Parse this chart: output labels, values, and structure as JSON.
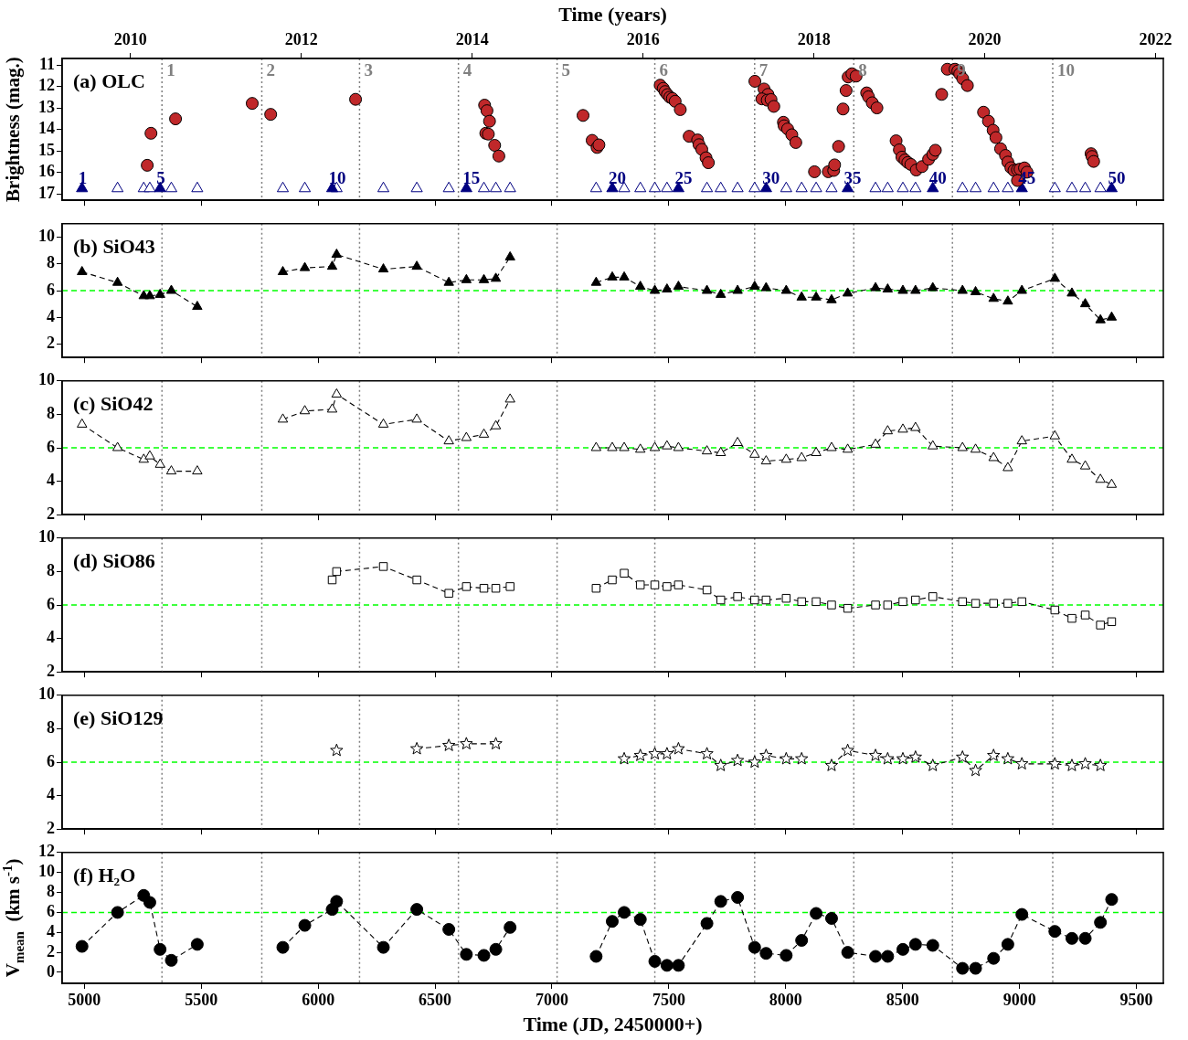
{
  "chart_data": [
    {
      "type": "scatter",
      "annotations": [
        "(a) OLC",
        {
          "text": "1",
          "x": 4990,
          "y": 16.3
        },
        {
          "text": "5",
          "x": 5324,
          "y": 16.3
        },
        {
          "text": "10",
          "x": 6060,
          "y": 16.3
        },
        {
          "text": "15",
          "x": 6634,
          "y": 16.3
        },
        {
          "text": "20",
          "x": 7258,
          "y": 16.3
        },
        {
          "text": "25",
          "x": 7541,
          "y": 16.3
        },
        {
          "text": "30",
          "x": 7916,
          "y": 16.3
        },
        {
          "text": "35",
          "x": 8265,
          "y": 16.3
        },
        {
          "text": "40",
          "x": 8629,
          "y": 16.3
        },
        {
          "text": "45",
          "x": 9010,
          "y": 16.3
        },
        {
          "text": "50",
          "x": 9394,
          "y": 16.3
        },
        {
          "text": "1",
          "x": 5332,
          "y": 11.3
        },
        {
          "text": "2",
          "x": 5759,
          "y": 11.3
        },
        {
          "text": "3",
          "x": 6177,
          "y": 11.3
        },
        {
          "text": "4",
          "x": 6600,
          "y": 11.3
        },
        {
          "text": "5",
          "x": 7022,
          "y": 11.3
        },
        {
          "text": "6",
          "x": 7440,
          "y": 11.3
        },
        {
          "text": "7",
          "x": 7867,
          "y": 11.3
        },
        {
          "text": "8",
          "x": 8291,
          "y": 11.3
        },
        {
          "text": "9",
          "x": 8713,
          "y": 11.3
        },
        {
          "text": "10",
          "x": 9142,
          "y": 11.3
        }
      ],
      "x2label": "Time (years)",
      "ylabel": "Brightness (mag.)",
      "xlim": [
        4905,
        9615
      ],
      "xticks": [
        5000,
        5500,
        6000,
        6500,
        7000,
        7500,
        8000,
        8500,
        9000,
        9500
      ],
      "x2lim": [
        2009.2,
        2022.09
      ],
      "x2ticks": [
        2010,
        2012,
        2014,
        2016,
        2018,
        2020,
        2022
      ],
      "ylim": [
        17.3,
        10.7
      ],
      "yticks": [
        11,
        12,
        13,
        14,
        15,
        16,
        17
      ],
      "tick_labels": "y",
      "ref_lines": [
        {
          "axis": "x",
          "value": 5332,
          "color": "#808080",
          "line_style": "dotted"
        },
        {
          "axis": "x",
          "value": 5759,
          "color": "#808080",
          "line_style": "dotted"
        },
        {
          "axis": "x",
          "value": 6177,
          "color": "#808080",
          "line_style": "dotted"
        },
        {
          "axis": "x",
          "value": 6600,
          "color": "#808080",
          "line_style": "dotted"
        },
        {
          "axis": "x",
          "value": 7022,
          "color": "#808080",
          "line_style": "dotted"
        },
        {
          "axis": "x",
          "value": 7440,
          "color": "#808080",
          "line_style": "dotted"
        },
        {
          "axis": "x",
          "value": 7867,
          "color": "#808080",
          "line_style": "dotted"
        },
        {
          "axis": "x",
          "value": 8291,
          "color": "#808080",
          "line_style": "dotted"
        },
        {
          "axis": "x",
          "value": 8713,
          "color": "#808080",
          "line_style": "dotted"
        },
        {
          "axis": "x",
          "value": 9142,
          "color": "#808080",
          "line_style": "dotted"
        }
      ],
      "series": [
        {
          "marker": "circle",
          "color": "#c0282a",
          "x": [
            5269,
            5285,
            5390,
            5718,
            5797,
            6160,
            6712,
            6722,
            6733,
            6717,
            6728,
            6755,
            6773,
            7133,
            7172,
            7193,
            7201,
            7463,
            7476,
            7484,
            7494,
            7504,
            7515,
            7527,
            7549,
            7587,
            7623,
            7629,
            7641,
            7659,
            7669,
            7868,
            7907,
            7924,
            7898,
            7921,
            7937,
            7949,
            7990,
            7993,
            8008,
            8026,
            8043,
            8123,
            8182,
            8205,
            8209,
            8226,
            8245,
            8258,
            8267,
            8283,
            8301,
            8346,
            8354,
            8370,
            8390,
            8472,
            8486,
            8497,
            8510,
            8522,
            8535,
            8558,
            8583,
            8611,
            8629,
            8640,
            8667,
            8691,
            8724,
            8736,
            8744,
            8757,
            8777,
            8846,
            8867,
            8887,
            8899,
            8919,
            8940,
            8950,
            8963,
            8976,
            8991,
            9002,
            8991,
            9021,
            9032,
            9306,
            9310,
            9317
          ],
          "values": [
            15.67,
            14.18,
            13.51,
            12.79,
            13.3,
            12.6,
            12.87,
            13.13,
            13.62,
            14.18,
            14.22,
            14.74,
            15.24,
            13.35,
            14.51,
            14.84,
            14.72,
            11.94,
            12.09,
            12.24,
            12.38,
            12.5,
            12.56,
            12.69,
            13.08,
            14.32,
            14.49,
            14.71,
            14.93,
            15.32,
            15.55,
            11.76,
            12.12,
            12.37,
            12.58,
            12.64,
            12.61,
            12.93,
            13.67,
            13.83,
            13.98,
            14.25,
            14.61,
            15.97,
            15.97,
            15.91,
            15.65,
            14.79,
            13.05,
            12.19,
            11.56,
            11.41,
            11.52,
            12.3,
            12.48,
            12.76,
            13.0,
            14.53,
            14.95,
            15.29,
            15.42,
            15.54,
            15.63,
            15.89,
            15.73,
            15.39,
            15.16,
            14.97,
            12.37,
            11.2,
            11.2,
            11.28,
            11.42,
            11.64,
            11.96,
            13.2,
            13.62,
            14.04,
            14.38,
            14.9,
            15.21,
            15.52,
            15.78,
            15.91,
            15.88,
            15.85,
            16.38,
            15.79,
            15.99,
            15.13,
            15.26,
            15.49
          ]
        },
        {
          "marker": "triangle",
          "color": "#000080",
          "x": [
            4990,
            5324,
            6060,
            6634,
            7258,
            7541,
            7916,
            8265,
            8629,
            9010,
            9394
          ],
          "values": [
            16.75,
            16.75,
            16.75,
            16.75,
            16.75,
            16.75,
            16.75,
            16.75,
            16.75,
            16.75,
            16.75
          ]
        },
        {
          "marker": "triangle",
          "color": "#ffffff",
          "x": [
            5142,
            5254,
            5280,
            5372,
            5483,
            5849,
            5943,
            6079,
            6279,
            6422,
            6559,
            6709,
            6760,
            6821,
            7189,
            7309,
            7378,
            7440,
            7492,
            7663,
            7722,
            7794,
            7867,
            8002,
            8068,
            8130,
            8196,
            8384,
            8436,
            8501,
            8555,
            8756,
            8812,
            8889,
            8950,
            9151,
            9224,
            9281,
            9346
          ],
          "values": [
            16.75,
            16.75,
            16.75,
            16.75,
            16.75,
            16.75,
            16.75,
            16.75,
            16.75,
            16.75,
            16.75,
            16.75,
            16.75,
            16.75,
            16.75,
            16.75,
            16.75,
            16.75,
            16.75,
            16.75,
            16.75,
            16.75,
            16.75,
            16.75,
            16.75,
            16.75,
            16.75,
            16.75,
            16.75,
            16.75,
            16.75,
            16.75,
            16.75,
            16.75,
            16.75,
            16.75,
            16.75,
            16.75,
            16.75
          ]
        }
      ]
    },
    {
      "type": "line",
      "annotations": [
        "(b) SiO43"
      ],
      "xlim": [
        4905,
        9615
      ],
      "xticks": [
        5000,
        5500,
        6000,
        6500,
        7000,
        7500,
        8000,
        8500,
        9000,
        9500
      ],
      "ylim": [
        1,
        11
      ],
      "yticks": [
        2,
        4,
        6,
        8,
        10
      ],
      "tick_labels": "y",
      "ref_lines": [
        {
          "axis": "y",
          "value": 6,
          "color": "#00ff00",
          "line_style": "dashed"
        },
        {
          "axis": "x",
          "value": 5332,
          "color": "#808080",
          "line_style": "dotted"
        },
        {
          "axis": "x",
          "value": 5759,
          "color": "#808080",
          "line_style": "dotted"
        },
        {
          "axis": "x",
          "value": 6177,
          "color": "#808080",
          "line_style": "dotted"
        },
        {
          "axis": "x",
          "value": 6600,
          "color": "#808080",
          "line_style": "dotted"
        },
        {
          "axis": "x",
          "value": 7022,
          "color": "#808080",
          "line_style": "dotted"
        },
        {
          "axis": "x",
          "value": 7440,
          "color": "#808080",
          "line_style": "dotted"
        },
        {
          "axis": "x",
          "value": 7867,
          "color": "#808080",
          "line_style": "dotted"
        },
        {
          "axis": "x",
          "value": 8291,
          "color": "#808080",
          "line_style": "dotted"
        },
        {
          "axis": "x",
          "value": 8713,
          "color": "#808080",
          "line_style": "dotted"
        },
        {
          "axis": "x",
          "value": 9142,
          "color": "#808080",
          "line_style": "dotted"
        }
      ],
      "series": [
        {
          "marker": "triangle",
          "line_style": "dashed",
          "color": "#000000",
          "x": [
            4990,
            5142,
            5254,
            5280,
            5324,
            5372,
            5483
          ],
          "values": [
            7.4,
            6.6,
            5.6,
            5.6,
            5.7,
            6.0,
            4.8
          ]
        },
        {
          "marker": "triangle",
          "line_style": "dashed",
          "color": "#000000",
          "x": [
            5849,
            5943,
            6060,
            6079,
            6279,
            6422,
            6559,
            6634,
            6709,
            6760,
            6821
          ],
          "values": [
            7.4,
            7.7,
            7.8,
            8.7,
            7.6,
            7.8,
            6.6,
            6.8,
            6.8,
            6.9,
            8.5
          ]
        },
        {
          "marker": "triangle",
          "line_style": "dashed",
          "color": "#000000",
          "x": [
            7189,
            7258,
            7309,
            7378,
            7440,
            7492,
            7541,
            7663,
            7722,
            7794,
            7867,
            7916,
            8002,
            8068,
            8130,
            8196,
            8265,
            8384,
            8436,
            8501,
            8555,
            8629,
            8756,
            8812,
            8889,
            8950,
            9010,
            9151,
            9224,
            9281,
            9346,
            9394
          ],
          "values": [
            6.6,
            7.0,
            7.0,
            6.3,
            6.0,
            6.1,
            6.3,
            6.0,
            5.7,
            6.0,
            6.3,
            6.2,
            6.0,
            5.5,
            5.5,
            5.3,
            5.8,
            6.2,
            6.1,
            6.0,
            6.0,
            6.2,
            6.0,
            5.9,
            5.4,
            5.2,
            6.0,
            6.9,
            5.8,
            5.0,
            3.8,
            4.0
          ]
        }
      ]
    },
    {
      "type": "line",
      "annotations": [
        "(c) SiO42"
      ],
      "xlim": [
        4905,
        9615
      ],
      "xticks": [
        5000,
        5500,
        6000,
        6500,
        7000,
        7500,
        8000,
        8500,
        9000,
        9500
      ],
      "ylim": [
        2,
        10
      ],
      "yticks": [
        2,
        4,
        6,
        8,
        10
      ],
      "tick_labels": "y",
      "ref_lines": [
        {
          "axis": "y",
          "value": 6,
          "color": "#00ff00",
          "line_style": "dashed"
        },
        {
          "axis": "x",
          "value": 5332,
          "color": "#808080",
          "line_style": "dotted"
        },
        {
          "axis": "x",
          "value": 5759,
          "color": "#808080",
          "line_style": "dotted"
        },
        {
          "axis": "x",
          "value": 6177,
          "color": "#808080",
          "line_style": "dotted"
        },
        {
          "axis": "x",
          "value": 6600,
          "color": "#808080",
          "line_style": "dotted"
        },
        {
          "axis": "x",
          "value": 7022,
          "color": "#808080",
          "line_style": "dotted"
        },
        {
          "axis": "x",
          "value": 7440,
          "color": "#808080",
          "line_style": "dotted"
        },
        {
          "axis": "x",
          "value": 7867,
          "color": "#808080",
          "line_style": "dotted"
        },
        {
          "axis": "x",
          "value": 8291,
          "color": "#808080",
          "line_style": "dotted"
        },
        {
          "axis": "x",
          "value": 8713,
          "color": "#808080",
          "line_style": "dotted"
        },
        {
          "axis": "x",
          "value": 9142,
          "color": "#808080",
          "line_style": "dotted"
        }
      ],
      "series": [
        {
          "marker": "triangle",
          "line_style": "dashed",
          "color": "#ffffff",
          "x": [
            4990,
            5142,
            5254,
            5280,
            5324,
            5372,
            5483
          ],
          "values": [
            7.4,
            6.0,
            5.3,
            5.5,
            5.0,
            4.6,
            4.6
          ]
        },
        {
          "marker": "triangle",
          "line_style": "dashed",
          "color": "#ffffff",
          "x": [
            5849,
            5943,
            6060,
            6079,
            6279,
            6422,
            6559,
            6634,
            6709,
            6760,
            6821
          ],
          "values": [
            7.7,
            8.2,
            8.3,
            9.2,
            7.4,
            7.7,
            6.4,
            6.6,
            6.8,
            7.3,
            8.9
          ]
        },
        {
          "marker": "triangle",
          "line_style": "dashed",
          "color": "#ffffff",
          "x": [
            7189,
            7258,
            7309,
            7378,
            7440,
            7492,
            7541,
            7663,
            7722,
            7794,
            7867,
            7916,
            8002,
            8068,
            8130,
            8196,
            8265,
            8384,
            8436,
            8501,
            8555,
            8629,
            8756,
            8812,
            8889,
            8950,
            9010,
            9151,
            9224,
            9281,
            9346,
            9394
          ],
          "values": [
            6.0,
            6.0,
            6.0,
            5.9,
            6.0,
            6.1,
            6.0,
            5.8,
            5.7,
            6.3,
            5.6,
            5.2,
            5.3,
            5.4,
            5.7,
            6.0,
            5.9,
            6.2,
            7.0,
            7.1,
            7.2,
            6.1,
            6.0,
            5.9,
            5.4,
            4.8,
            6.4,
            6.7,
            5.3,
            4.9,
            4.1,
            3.8
          ]
        }
      ]
    },
    {
      "type": "line",
      "annotations": [
        "(d) SiO86"
      ],
      "xlim": [
        4905,
        9615
      ],
      "xticks": [
        5000,
        5500,
        6000,
        6500,
        7000,
        7500,
        8000,
        8500,
        9000,
        9500
      ],
      "ylim": [
        2,
        10
      ],
      "yticks": [
        2,
        4,
        6,
        8,
        10
      ],
      "tick_labels": "y",
      "ref_lines": [
        {
          "axis": "y",
          "value": 6,
          "color": "#00ff00",
          "line_style": "dashed"
        },
        {
          "axis": "x",
          "value": 5332,
          "color": "#808080",
          "line_style": "dotted"
        },
        {
          "axis": "x",
          "value": 5759,
          "color": "#808080",
          "line_style": "dotted"
        },
        {
          "axis": "x",
          "value": 6177,
          "color": "#808080",
          "line_style": "dotted"
        },
        {
          "axis": "x",
          "value": 6600,
          "color": "#808080",
          "line_style": "dotted"
        },
        {
          "axis": "x",
          "value": 7022,
          "color": "#808080",
          "line_style": "dotted"
        },
        {
          "axis": "x",
          "value": 7440,
          "color": "#808080",
          "line_style": "dotted"
        },
        {
          "axis": "x",
          "value": 7867,
          "color": "#808080",
          "line_style": "dotted"
        },
        {
          "axis": "x",
          "value": 8291,
          "color": "#808080",
          "line_style": "dotted"
        },
        {
          "axis": "x",
          "value": 8713,
          "color": "#808080",
          "line_style": "dotted"
        },
        {
          "axis": "x",
          "value": 9142,
          "color": "#808080",
          "line_style": "dotted"
        }
      ],
      "series": [
        {
          "marker": "square",
          "line_style": "dashed",
          "color": "#ffffff",
          "x": [
            6060,
            6079,
            6279,
            6422,
            6559,
            6634,
            6709,
            6760,
            6821
          ],
          "values": [
            7.5,
            8.0,
            8.3,
            7.5,
            6.7,
            7.1,
            7.0,
            7.0,
            7.1
          ]
        },
        {
          "marker": "square",
          "line_style": "dashed",
          "color": "#ffffff",
          "x": [
            7189,
            7258,
            7309,
            7378,
            7440,
            7492,
            7541,
            7663,
            7722,
            7794,
            7867,
            7916,
            8002,
            8068,
            8130,
            8196,
            8265,
            8384,
            8436,
            8501,
            8555,
            8629,
            8756,
            8812,
            8889,
            8950,
            9010,
            9151,
            9224,
            9281,
            9346,
            9394
          ],
          "values": [
            7.0,
            7.5,
            7.9,
            7.2,
            7.2,
            7.1,
            7.2,
            6.9,
            6.3,
            6.5,
            6.3,
            6.3,
            6.4,
            6.2,
            6.2,
            6.0,
            5.8,
            6.0,
            6.0,
            6.2,
            6.3,
            6.5,
            6.2,
            6.1,
            6.1,
            6.1,
            6.2,
            5.7,
            5.2,
            5.4,
            4.8,
            5.0
          ]
        }
      ]
    },
    {
      "type": "line",
      "annotations": [
        "(e) SiO129"
      ],
      "xlim": [
        4905,
        9615
      ],
      "xticks": [
        5000,
        5500,
        6000,
        6500,
        7000,
        7500,
        8000,
        8500,
        9000,
        9500
      ],
      "ylim": [
        2,
        10
      ],
      "yticks": [
        2,
        4,
        6,
        8,
        10
      ],
      "tick_labels": "y",
      "ref_lines": [
        {
          "axis": "y",
          "value": 6,
          "color": "#00ff00",
          "line_style": "dashed"
        },
        {
          "axis": "x",
          "value": 5332,
          "color": "#808080",
          "line_style": "dotted"
        },
        {
          "axis": "x",
          "value": 5759,
          "color": "#808080",
          "line_style": "dotted"
        },
        {
          "axis": "x",
          "value": 6177,
          "color": "#808080",
          "line_style": "dotted"
        },
        {
          "axis": "x",
          "value": 6600,
          "color": "#808080",
          "line_style": "dotted"
        },
        {
          "axis": "x",
          "value": 7022,
          "color": "#808080",
          "line_style": "dotted"
        },
        {
          "axis": "x",
          "value": 7440,
          "color": "#808080",
          "line_style": "dotted"
        },
        {
          "axis": "x",
          "value": 7867,
          "color": "#808080",
          "line_style": "dotted"
        },
        {
          "axis": "x",
          "value": 8291,
          "color": "#808080",
          "line_style": "dotted"
        },
        {
          "axis": "x",
          "value": 8713,
          "color": "#808080",
          "line_style": "dotted"
        },
        {
          "axis": "x",
          "value": 9142,
          "color": "#808080",
          "line_style": "dotted"
        }
      ],
      "series": [
        {
          "marker": "star",
          "line_style": "dashed",
          "color": "#ffffff",
          "x": [
            6079
          ],
          "values": [
            6.7
          ]
        },
        {
          "marker": "star",
          "line_style": "dashed",
          "color": "#ffffff",
          "x": [
            6422,
            6559,
            6634,
            6760
          ],
          "values": [
            6.8,
            7.0,
            7.1,
            7.1
          ]
        },
        {
          "marker": "star",
          "line_style": "dashed",
          "color": "#ffffff",
          "x": [
            7309,
            7378,
            7440,
            7492,
            7541,
            7663,
            7722,
            7794,
            7867,
            7916,
            8002,
            8068
          ],
          "values": [
            6.2,
            6.4,
            6.5,
            6.5,
            6.8,
            6.5,
            5.8,
            6.1,
            6.0,
            6.4,
            6.2,
            6.2
          ]
        },
        {
          "marker": "star",
          "line_style": "dashed",
          "color": "#ffffff",
          "x": [
            8196,
            8265,
            8384,
            8436,
            8501,
            8555,
            8629,
            8756,
            8812,
            8889,
            8950,
            9010,
            9151,
            9224,
            9281,
            9346
          ],
          "values": [
            5.8,
            6.7,
            6.4,
            6.2,
            6.2,
            6.3,
            5.8,
            6.3,
            5.5,
            6.4,
            6.2,
            5.9,
            5.9,
            5.8,
            5.9,
            5.8
          ]
        }
      ]
    },
    {
      "type": "line",
      "annotations": [
        "(f) H₂O"
      ],
      "xlabel": "Time (JD, 2450000+)",
      "ylabel": "V$_{mean}$  (km s$^{-1}$)",
      "xlim": [
        4905,
        9615
      ],
      "xticks": [
        5000,
        5500,
        6000,
        6500,
        7000,
        7500,
        8000,
        8500,
        9000,
        9500
      ],
      "ylim": [
        -1.1,
        12
      ],
      "yticks": [
        0,
        2,
        4,
        6,
        8,
        10,
        12
      ],
      "ref_lines": [
        {
          "axis": "y",
          "value": 6,
          "color": "#00ff00",
          "line_style": "dashed"
        },
        {
          "axis": "x",
          "value": 5332,
          "color": "#808080",
          "line_style": "dotted"
        },
        {
          "axis": "x",
          "value": 5759,
          "color": "#808080",
          "line_style": "dotted"
        },
        {
          "axis": "x",
          "value": 6177,
          "color": "#808080",
          "line_style": "dotted"
        },
        {
          "axis": "x",
          "value": 6600,
          "color": "#808080",
          "line_style": "dotted"
        },
        {
          "axis": "x",
          "value": 7022,
          "color": "#808080",
          "line_style": "dotted"
        },
        {
          "axis": "x",
          "value": 7440,
          "color": "#808080",
          "line_style": "dotted"
        },
        {
          "axis": "x",
          "value": 7867,
          "color": "#808080",
          "line_style": "dotted"
        },
        {
          "axis": "x",
          "value": 8291,
          "color": "#808080",
          "line_style": "dotted"
        },
        {
          "axis": "x",
          "value": 8713,
          "color": "#808080",
          "line_style": "dotted"
        },
        {
          "axis": "x",
          "value": 9142,
          "color": "#808080",
          "line_style": "dotted"
        }
      ],
      "series": [
        {
          "marker": "circle",
          "line_style": "dashed",
          "color": "#000000",
          "x": [
            4990,
            5142,
            5254,
            5280,
            5324,
            5372,
            5483
          ],
          "values": [
            2.6,
            6.0,
            7.7,
            7.0,
            2.3,
            1.2,
            2.8
          ]
        },
        {
          "marker": "circle",
          "line_style": "dashed",
          "color": "#000000",
          "x": [
            5849,
            5943,
            6060,
            6079,
            6279,
            6422,
            6559,
            6634,
            6709,
            6760,
            6821
          ],
          "values": [
            2.5,
            4.7,
            6.3,
            7.1,
            2.5,
            6.3,
            4.3,
            1.8,
            1.7,
            2.3,
            4.5
          ]
        },
        {
          "marker": "circle",
          "line_style": "dashed",
          "color": "#000000",
          "x": [
            7189,
            7258,
            7309,
            7378,
            7440,
            7492,
            7541,
            7663,
            7722,
            7794,
            7867,
            7916,
            8002,
            8068,
            8130,
            8196,
            8265,
            8384,
            8436,
            8501,
            8555,
            8629,
            8756,
            8812,
            8889,
            8950,
            9010,
            9151,
            9224,
            9281,
            9346,
            9394
          ],
          "values": [
            1.6,
            5.1,
            6.0,
            5.3,
            1.1,
            0.7,
            0.7,
            4.9,
            7.1,
            7.5,
            2.5,
            1.9,
            1.7,
            3.2,
            5.9,
            5.4,
            2.0,
            1.6,
            1.6,
            2.3,
            2.8,
            2.7,
            0.4,
            0.4,
            1.4,
            2.8,
            5.8,
            4.1,
            3.4,
            3.4,
            5.0,
            7.3
          ]
        }
      ]
    }
  ]
}
